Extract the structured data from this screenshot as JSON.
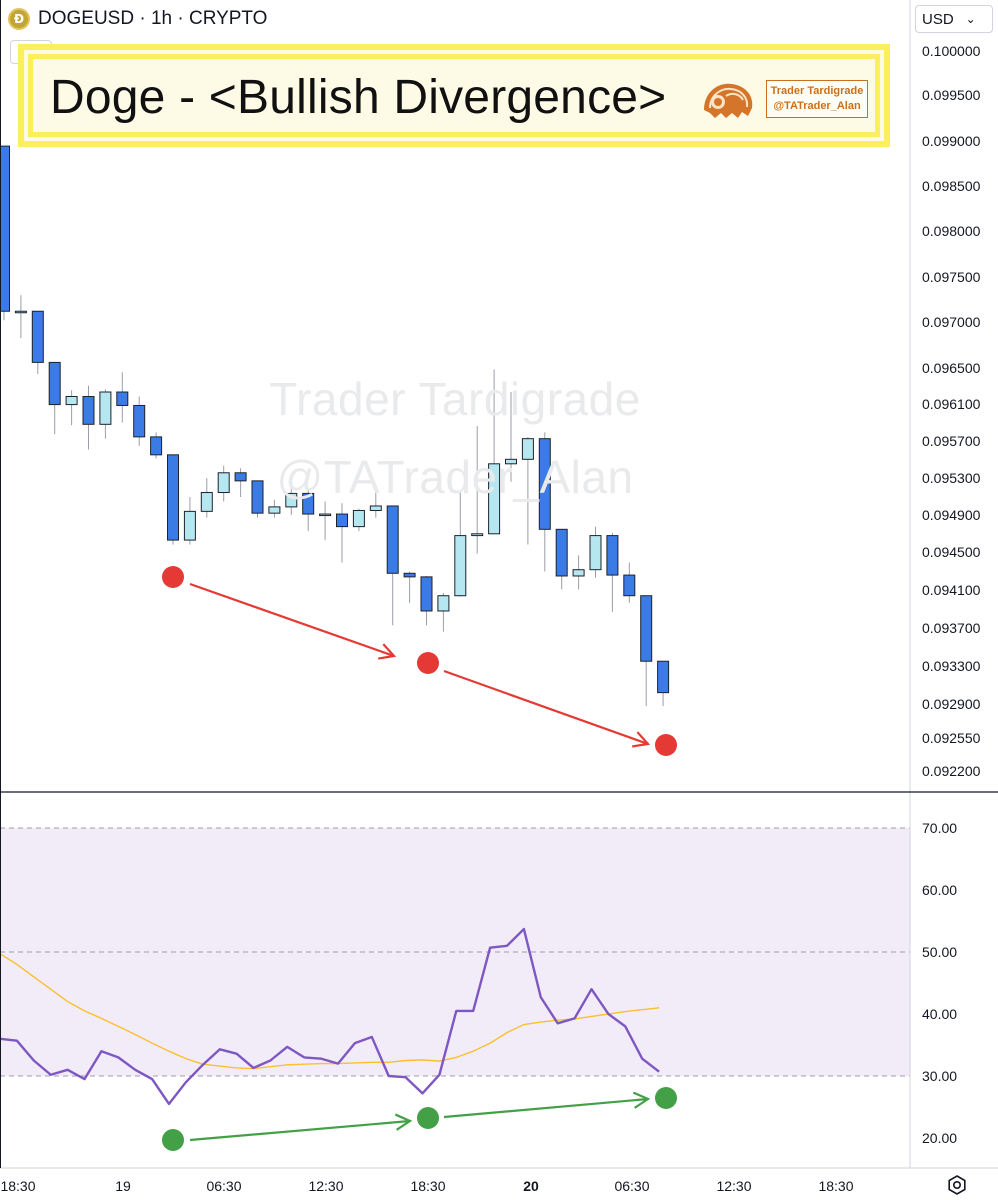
{
  "header": {
    "symbol_title": "DOGEUSD · 1h · CRYPTO",
    "indicator_count": "3",
    "icons": {
      "symbol": "dogecoin-icon",
      "toggle": "chevron-down-icon",
      "settings": "gear-icon"
    }
  },
  "title_banner": {
    "text": "Doge - <Bullish Divergence>",
    "brand_line1": "Trader Tardigrade",
    "brand_line2": "@TATrader_Alan"
  },
  "watermark": {
    "line1": "Trader Tardigrade",
    "line2": "@TATrader_Alan"
  },
  "price_axis": {
    "currency": "USD"
  },
  "colors": {
    "bear_candle": "#3b7be6",
    "bull_candle": "#b4e7ef",
    "rsi_line": "#7e57c2",
    "rsi_ma": "#fbc02d",
    "rsi_band": "#f1ecf8",
    "divergence_price": "#e53935",
    "divergence_rsi": "#43a047"
  },
  "chart_data": [
    {
      "type": "candlestick",
      "title": "DOGEUSD · 1h · CRYPTO",
      "y_ticks": [
        "0.100000",
        "0.099500",
        "0.099000",
        "0.098500",
        "0.098000",
        "0.097500",
        "0.097000",
        "0.096500",
        "0.096100",
        "0.095700",
        "0.095300",
        "0.094900",
        "0.094500",
        "0.094100",
        "0.093700",
        "0.093300",
        "0.092900",
        "0.092550",
        "0.092200"
      ],
      "x_ticks": [
        "18:30",
        "19",
        "06:30",
        "12:30",
        "18:30",
        "20",
        "06:30",
        "12:30",
        "18:30"
      ],
      "candles": [
        {
          "o": 0.09894,
          "h": 0.09894,
          "l": 0.097,
          "c": 0.0971
        },
        {
          "o": 0.0971,
          "h": 0.09728,
          "l": 0.0968,
          "c": 0.0971
        },
        {
          "o": 0.0971,
          "h": 0.0971,
          "l": 0.0964,
          "c": 0.09653
        },
        {
          "o": 0.09653,
          "h": 0.09653,
          "l": 0.09573,
          "c": 0.09606
        },
        {
          "o": 0.09606,
          "h": 0.09622,
          "l": 0.09583,
          "c": 0.09615
        },
        {
          "o": 0.09615,
          "h": 0.09627,
          "l": 0.09556,
          "c": 0.09584
        },
        {
          "o": 0.09584,
          "h": 0.09623,
          "l": 0.09568,
          "c": 0.0962
        },
        {
          "o": 0.0962,
          "h": 0.09642,
          "l": 0.09586,
          "c": 0.09605
        },
        {
          "o": 0.09605,
          "h": 0.09615,
          "l": 0.0956,
          "c": 0.0957
        },
        {
          "o": 0.0957,
          "h": 0.09575,
          "l": 0.09546,
          "c": 0.0955
        },
        {
          "o": 0.0955,
          "h": 0.0955,
          "l": 0.0945,
          "c": 0.09455
        },
        {
          "o": 0.09455,
          "h": 0.09503,
          "l": 0.0945,
          "c": 0.09487
        },
        {
          "o": 0.09487,
          "h": 0.09524,
          "l": 0.0948,
          "c": 0.09508
        },
        {
          "o": 0.09508,
          "h": 0.09538,
          "l": 0.09498,
          "c": 0.0953
        },
        {
          "o": 0.0953,
          "h": 0.09535,
          "l": 0.09503,
          "c": 0.09521
        },
        {
          "o": 0.09521,
          "h": 0.09521,
          "l": 0.0948,
          "c": 0.09485
        },
        {
          "o": 0.09485,
          "h": 0.095,
          "l": 0.0948,
          "c": 0.09492
        },
        {
          "o": 0.09492,
          "h": 0.09515,
          "l": 0.09483,
          "c": 0.09507
        },
        {
          "o": 0.09507,
          "h": 0.09512,
          "l": 0.09465,
          "c": 0.09484
        },
        {
          "o": 0.09484,
          "h": 0.09498,
          "l": 0.09455,
          "c": 0.09484
        },
        {
          "o": 0.09484,
          "h": 0.09496,
          "l": 0.0943,
          "c": 0.0947
        },
        {
          "o": 0.0947,
          "h": 0.0949,
          "l": 0.09465,
          "c": 0.09488
        },
        {
          "o": 0.09488,
          "h": 0.0951,
          "l": 0.0948,
          "c": 0.09493
        },
        {
          "o": 0.09493,
          "h": 0.09493,
          "l": 0.0936,
          "c": 0.09418
        },
        {
          "o": 0.09418,
          "h": 0.0942,
          "l": 0.09385,
          "c": 0.09414
        },
        {
          "o": 0.09414,
          "h": 0.09415,
          "l": 0.0936,
          "c": 0.09376
        },
        {
          "o": 0.09376,
          "h": 0.09396,
          "l": 0.09353,
          "c": 0.09393
        },
        {
          "o": 0.09393,
          "h": 0.09508,
          "l": 0.09392,
          "c": 0.0946
        },
        {
          "o": 0.0946,
          "h": 0.09582,
          "l": 0.0944,
          "c": 0.09462
        },
        {
          "o": 0.09462,
          "h": 0.09645,
          "l": 0.09462,
          "c": 0.0954
        },
        {
          "o": 0.0954,
          "h": 0.0962,
          "l": 0.0952,
          "c": 0.09545
        },
        {
          "o": 0.09545,
          "h": 0.0957,
          "l": 0.0945,
          "c": 0.09568
        },
        {
          "o": 0.09568,
          "h": 0.09575,
          "l": 0.0942,
          "c": 0.09467
        },
        {
          "o": 0.09467,
          "h": 0.09467,
          "l": 0.094,
          "c": 0.09415
        },
        {
          "o": 0.09415,
          "h": 0.09438,
          "l": 0.094,
          "c": 0.09422
        },
        {
          "o": 0.09422,
          "h": 0.0947,
          "l": 0.09413,
          "c": 0.0946
        },
        {
          "o": 0.0946,
          "h": 0.09463,
          "l": 0.09375,
          "c": 0.09416
        },
        {
          "o": 0.09416,
          "h": 0.0943,
          "l": 0.09385,
          "c": 0.09393
        },
        {
          "o": 0.09393,
          "h": 0.09393,
          "l": 0.0927,
          "c": 0.0932
        },
        {
          "o": 0.0932,
          "h": 0.0932,
          "l": 0.0927,
          "c": 0.09285
        }
      ]
    },
    {
      "type": "line",
      "title": "",
      "y_ticks": [
        "70.00",
        "60.00",
        "50.00",
        "40.00",
        "30.00",
        "20.00"
      ],
      "levels": {
        "upper": 70,
        "middle": 50,
        "lower": 30
      },
      "series": [
        {
          "values": [
            36,
            35.7,
            32.5,
            30.2,
            31,
            29.5,
            34,
            33,
            31,
            29.5,
            25.5,
            29,
            31.8,
            34.3,
            33.6,
            31.3,
            32.5,
            34.7,
            33,
            32.8,
            32,
            35.3,
            36.3,
            30,
            29.8,
            27.2,
            30.2,
            40.5,
            40.5,
            50.7,
            51,
            53.7,
            42.7,
            38.5,
            39.3,
            44,
            40,
            38,
            32.8,
            30.7
          ]
        },
        {
          "values": [
            49.7,
            48,
            46,
            44,
            42,
            40.5,
            39.3,
            38,
            36.7,
            35.3,
            34,
            32.8,
            31.9,
            31.6,
            31.3,
            31.2,
            31.5,
            31.8,
            31.9,
            32,
            32,
            32.1,
            32.2,
            32.2,
            32.5,
            32.6,
            32.4,
            33,
            34,
            35.3,
            37,
            38.3,
            38.7,
            39,
            39.2,
            39.6,
            40,
            40.4,
            40.7,
            41
          ]
        }
      ]
    }
  ]
}
